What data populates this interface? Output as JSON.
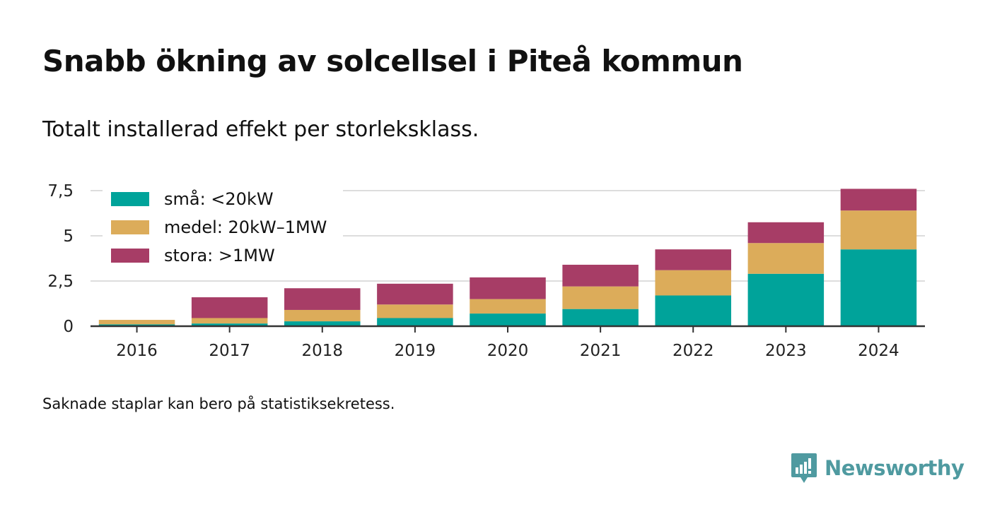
{
  "header": {
    "title": "Snabb ökning av solcellsel i Piteå kommun",
    "subtitle": "Totalt installerad effekt per storleksklass."
  },
  "footer": {
    "note": "Saknade staplar kan bero på statistiksekretess.",
    "brand": "Newsworthy"
  },
  "chart_data": {
    "type": "bar",
    "stacked": true,
    "categories": [
      "2016",
      "2017",
      "2018",
      "2019",
      "2020",
      "2021",
      "2022",
      "2023",
      "2024"
    ],
    "series": [
      {
        "name": "små: <20kW",
        "color": "#00a39a",
        "values": [
          0.1,
          0.15,
          0.27,
          0.45,
          0.7,
          0.95,
          1.7,
          2.9,
          4.25
        ]
      },
      {
        "name": "medel: 20kW–1MW",
        "color": "#dcac5a",
        "values": [
          0.25,
          0.3,
          0.63,
          0.75,
          0.8,
          1.25,
          1.4,
          1.7,
          2.15
        ]
      },
      {
        "name": "stora: >1MW",
        "color": "#a73d66",
        "values": [
          0.0,
          1.15,
          1.2,
          1.15,
          1.2,
          1.2,
          1.15,
          1.15,
          1.2
        ]
      }
    ],
    "yticks": [
      0,
      2.5,
      5,
      7.5
    ],
    "ytick_labels": [
      "0",
      "2,5",
      "5",
      "7,5"
    ],
    "ylim": [
      0,
      7.7
    ],
    "grid": true,
    "legend_position": "top-left"
  }
}
